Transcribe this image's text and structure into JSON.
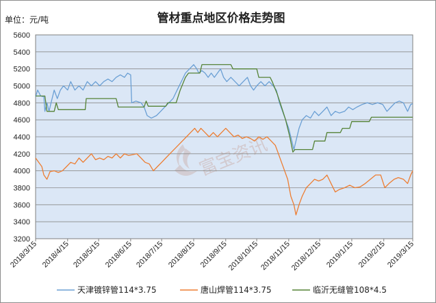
{
  "chart_data": {
    "type": "line",
    "title": "管材重点地区价格走势图",
    "unit_label": "单位：元/吨",
    "ylim": [
      3200,
      5600
    ],
    "yticks": [
      3200,
      3400,
      3600,
      3800,
      4000,
      4200,
      4400,
      4600,
      4800,
      5000,
      5200,
      5400,
      5600
    ],
    "x_start": "2018/3/15",
    "x_end": "2019/3/15",
    "xticks": [
      "2018/3/15",
      "2018/4/15",
      "2018/5/15",
      "2018/6/15",
      "2018/7/15",
      "2018/8/15",
      "2018/9/15",
      "2018/10/15",
      "2018/11/15",
      "2018/12/15",
      "2019/1/15",
      "2019/2/15",
      "2019/3/15"
    ],
    "grid": true,
    "legend_position": "bottom",
    "plot_background": "#dbe7f6",
    "watermark": "富宝资讯",
    "series": [
      {
        "name": "天津镀锌管114*3.75",
        "color": "#6a9fd4",
        "points": [
          [
            "2018/3/15",
            4870
          ],
          [
            "2018/3/17",
            4950
          ],
          [
            "2018/3/20",
            4880
          ],
          [
            "2018/3/23",
            4870
          ],
          [
            "2018/3/24",
            4700
          ],
          [
            "2018/3/26",
            4800
          ],
          [
            "2018/3/28",
            4700
          ],
          [
            "2018/3/30",
            4800
          ],
          [
            "2018/4/2",
            4950
          ],
          [
            "2018/4/5",
            4850
          ],
          [
            "2018/4/8",
            4950
          ],
          [
            "2018/4/11",
            5000
          ],
          [
            "2018/4/15",
            4950
          ],
          [
            "2018/4/18",
            5050
          ],
          [
            "2018/4/22",
            4950
          ],
          [
            "2018/4/26",
            5000
          ],
          [
            "2018/4/30",
            4950
          ],
          [
            "2018/5/4",
            5050
          ],
          [
            "2018/5/8",
            5000
          ],
          [
            "2018/5/12",
            5050
          ],
          [
            "2018/5/16",
            5000
          ],
          [
            "2018/5/20",
            5050
          ],
          [
            "2018/5/24",
            5080
          ],
          [
            "2018/5/28",
            5050
          ],
          [
            "2018/6/1",
            5100
          ],
          [
            "2018/6/5",
            5130
          ],
          [
            "2018/6/9",
            5100
          ],
          [
            "2018/6/12",
            5150
          ],
          [
            "2018/6/15",
            5130
          ],
          [
            "2018/6/16",
            4800
          ],
          [
            "2018/6/20",
            4820
          ],
          [
            "2018/6/25",
            4800
          ],
          [
            "2018/6/28",
            4750
          ],
          [
            "2018/7/1",
            4650
          ],
          [
            "2018/7/5",
            4620
          ],
          [
            "2018/7/10",
            4650
          ],
          [
            "2018/7/14",
            4700
          ],
          [
            "2018/7/18",
            4750
          ],
          [
            "2018/7/22",
            4800
          ],
          [
            "2018/7/26",
            4850
          ],
          [
            "2018/7/30",
            4950
          ],
          [
            "2018/8/3",
            5050
          ],
          [
            "2018/8/7",
            5150
          ],
          [
            "2018/8/11",
            5200
          ],
          [
            "2018/8/15",
            5250
          ],
          [
            "2018/8/18",
            5200
          ],
          [
            "2018/8/20",
            5150
          ],
          [
            "2018/8/23",
            5180
          ],
          [
            "2018/8/26",
            5150
          ],
          [
            "2018/8/29",
            5100
          ],
          [
            "2018/9/1",
            5150
          ],
          [
            "2018/9/4",
            5100
          ],
          [
            "2018/9/7",
            5150
          ],
          [
            "2018/9/10",
            5200
          ],
          [
            "2018/9/13",
            5100
          ],
          [
            "2018/9/16",
            5050
          ],
          [
            "2018/9/20",
            5100
          ],
          [
            "2018/9/24",
            5050
          ],
          [
            "2018/9/28",
            5000
          ],
          [
            "2018/10/2",
            5050
          ],
          [
            "2018/10/6",
            5100
          ],
          [
            "2018/10/9",
            5000
          ],
          [
            "2018/10/12",
            4950
          ],
          [
            "2018/10/15",
            5000
          ],
          [
            "2018/10/19",
            5050
          ],
          [
            "2018/10/23",
            5000
          ],
          [
            "2018/10/27",
            5050
          ],
          [
            "2018/10/31",
            5000
          ],
          [
            "2018/11/3",
            4950
          ],
          [
            "2018/11/6",
            4800
          ],
          [
            "2018/11/9",
            4700
          ],
          [
            "2018/11/12",
            4600
          ],
          [
            "2018/11/15",
            4500
          ],
          [
            "2018/11/18",
            4350
          ],
          [
            "2018/11/20",
            4250
          ],
          [
            "2018/11/22",
            4350
          ],
          [
            "2018/11/25",
            4500
          ],
          [
            "2018/11/28",
            4600
          ],
          [
            "2018/12/2",
            4650
          ],
          [
            "2018/12/6",
            4620
          ],
          [
            "2018/12/10",
            4700
          ],
          [
            "2018/12/14",
            4650
          ],
          [
            "2018/12/18",
            4700
          ],
          [
            "2018/12/22",
            4750
          ],
          [
            "2018/12/26",
            4650
          ],
          [
            "2018/12/30",
            4700
          ],
          [
            "2019/1/3",
            4680
          ],
          [
            "2019/1/8",
            4700
          ],
          [
            "2019/1/12",
            4750
          ],
          [
            "2019/1/16",
            4720
          ],
          [
            "2019/1/20",
            4750
          ],
          [
            "2019/1/25",
            4780
          ],
          [
            "2019/1/30",
            4800
          ],
          [
            "2019/2/4",
            4780
          ],
          [
            "2019/2/9",
            4800
          ],
          [
            "2019/2/14",
            4780
          ],
          [
            "2019/2/18",
            4700
          ],
          [
            "2019/2/22",
            4750
          ],
          [
            "2019/2/26",
            4800
          ],
          [
            "2019/3/2",
            4820
          ],
          [
            "2019/3/6",
            4800
          ],
          [
            "2019/3/10",
            4700
          ],
          [
            "2019/3/13",
            4780
          ],
          [
            "2019/3/15",
            4790
          ]
        ]
      },
      {
        "name": "唐山焊管114*3.75",
        "color": "#ed7d31",
        "points": [
          [
            "2018/3/15",
            4150
          ],
          [
            "2018/3/18",
            4100
          ],
          [
            "2018/3/21",
            4050
          ],
          [
            "2018/3/23",
            3950
          ],
          [
            "2018/3/26",
            3900
          ],
          [
            "2018/3/29",
            3990
          ],
          [
            "2018/4/2",
            4000
          ],
          [
            "2018/4/6",
            3980
          ],
          [
            "2018/4/10",
            4000
          ],
          [
            "2018/4/14",
            4050
          ],
          [
            "2018/4/18",
            4100
          ],
          [
            "2018/4/22",
            4080
          ],
          [
            "2018/4/26",
            4150
          ],
          [
            "2018/4/30",
            4100
          ],
          [
            "2018/5/4",
            4150
          ],
          [
            "2018/5/8",
            4200
          ],
          [
            "2018/5/12",
            4130
          ],
          [
            "2018/5/16",
            4150
          ],
          [
            "2018/5/20",
            4130
          ],
          [
            "2018/5/24",
            4170
          ],
          [
            "2018/5/28",
            4150
          ],
          [
            "2018/6/1",
            4200
          ],
          [
            "2018/6/5",
            4150
          ],
          [
            "2018/6/9",
            4200
          ],
          [
            "2018/6/13",
            4180
          ],
          [
            "2018/6/17",
            4190
          ],
          [
            "2018/6/21",
            4200
          ],
          [
            "2018/6/25",
            4150
          ],
          [
            "2018/6/29",
            4100
          ],
          [
            "2018/7/3",
            4080
          ],
          [
            "2018/7/7",
            4000
          ],
          [
            "2018/7/11",
            4050
          ],
          [
            "2018/7/15",
            4100
          ],
          [
            "2018/7/19",
            4150
          ],
          [
            "2018/7/23",
            4200
          ],
          [
            "2018/7/27",
            4250
          ],
          [
            "2018/7/31",
            4300
          ],
          [
            "2018/8/4",
            4350
          ],
          [
            "2018/8/8",
            4400
          ],
          [
            "2018/8/12",
            4450
          ],
          [
            "2018/8/16",
            4500
          ],
          [
            "2018/8/19",
            4450
          ],
          [
            "2018/8/22",
            4500
          ],
          [
            "2018/8/26",
            4450
          ],
          [
            "2018/8/30",
            4400
          ],
          [
            "2018/9/3",
            4450
          ],
          [
            "2018/9/7",
            4400
          ],
          [
            "2018/9/11",
            4450
          ],
          [
            "2018/9/15",
            4500
          ],
          [
            "2018/9/19",
            4450
          ],
          [
            "2018/9/23",
            4400
          ],
          [
            "2018/9/27",
            4420
          ],
          [
            "2018/10/1",
            4380
          ],
          [
            "2018/10/5",
            4400
          ],
          [
            "2018/10/9",
            4380
          ],
          [
            "2018/10/13",
            4350
          ],
          [
            "2018/10/17",
            4400
          ],
          [
            "2018/10/21",
            4370
          ],
          [
            "2018/10/25",
            4400
          ],
          [
            "2018/10/29",
            4350
          ],
          [
            "2018/11/2",
            4300
          ],
          [
            "2018/11/5",
            4200
          ],
          [
            "2018/11/8",
            4100
          ],
          [
            "2018/11/11",
            4000
          ],
          [
            "2018/11/14",
            3900
          ],
          [
            "2018/11/17",
            3700
          ],
          [
            "2018/11/20",
            3600
          ],
          [
            "2018/11/22",
            3480
          ],
          [
            "2018/11/25",
            3600
          ],
          [
            "2018/11/28",
            3700
          ],
          [
            "2018/12/2",
            3800
          ],
          [
            "2018/12/6",
            3850
          ],
          [
            "2018/12/10",
            3900
          ],
          [
            "2018/12/14",
            3880
          ],
          [
            "2018/12/18",
            3900
          ],
          [
            "2018/12/22",
            3950
          ],
          [
            "2018/12/26",
            3850
          ],
          [
            "2018/12/30",
            3750
          ],
          [
            "2019/1/3",
            3780
          ],
          [
            "2019/1/8",
            3800
          ],
          [
            "2019/1/13",
            3830
          ],
          [
            "2019/1/18",
            3800
          ],
          [
            "2019/1/23",
            3810
          ],
          [
            "2019/1/28",
            3850
          ],
          [
            "2019/2/2",
            3900
          ],
          [
            "2019/2/7",
            3950
          ],
          [
            "2019/2/12",
            3950
          ],
          [
            "2019/2/16",
            3800
          ],
          [
            "2019/2/20",
            3850
          ],
          [
            "2019/2/25",
            3900
          ],
          [
            "2019/3/1",
            3920
          ],
          [
            "2019/3/6",
            3900
          ],
          [
            "2019/3/10",
            3850
          ],
          [
            "2019/3/13",
            3950
          ],
          [
            "2019/3/15",
            4000
          ]
        ]
      },
      {
        "name": "临沂无缝管108*4.5",
        "color": "#548235",
        "points": [
          [
            "2018/3/15",
            4880
          ],
          [
            "2018/3/24",
            4880
          ],
          [
            "2018/3/26",
            4700
          ],
          [
            "2018/4/2",
            4700
          ],
          [
            "2018/4/4",
            4800
          ],
          [
            "2018/4/6",
            4720
          ],
          [
            "2018/5/2",
            4720
          ],
          [
            "2018/5/3",
            4850
          ],
          [
            "2018/6/1",
            4850
          ],
          [
            "2018/6/3",
            4750
          ],
          [
            "2018/6/28",
            4750
          ],
          [
            "2018/6/30",
            4820
          ],
          [
            "2018/7/2",
            4760
          ],
          [
            "2018/7/19",
            4760
          ],
          [
            "2018/7/21",
            4800
          ],
          [
            "2018/7/29",
            4800
          ],
          [
            "2018/8/2",
            4950
          ],
          [
            "2018/8/7",
            5100
          ],
          [
            "2018/8/10",
            5150
          ],
          [
            "2018/8/21",
            5150
          ],
          [
            "2018/8/23",
            5250
          ],
          [
            "2018/9/20",
            5250
          ],
          [
            "2018/9/22",
            5200
          ],
          [
            "2018/10/15",
            5200
          ],
          [
            "2018/10/17",
            5100
          ],
          [
            "2018/10/28",
            5100
          ],
          [
            "2018/10/30",
            5050
          ],
          [
            "2018/11/4",
            4900
          ],
          [
            "2018/11/8",
            4750
          ],
          [
            "2018/11/12",
            4600
          ],
          [
            "2018/11/16",
            4400
          ],
          [
            "2018/11/19",
            4220
          ],
          [
            "2018/11/21",
            4250
          ],
          [
            "2018/12/8",
            4250
          ],
          [
            "2018/12/10",
            4350
          ],
          [
            "2018/12/20",
            4350
          ],
          [
            "2018/12/22",
            4450
          ],
          [
            "2019/1/4",
            4450
          ],
          [
            "2019/1/6",
            4500
          ],
          [
            "2019/1/13",
            4500
          ],
          [
            "2019/1/15",
            4580
          ],
          [
            "2019/2/1",
            4580
          ],
          [
            "2019/2/3",
            4630
          ],
          [
            "2019/3/15",
            4630
          ]
        ]
      }
    ]
  }
}
